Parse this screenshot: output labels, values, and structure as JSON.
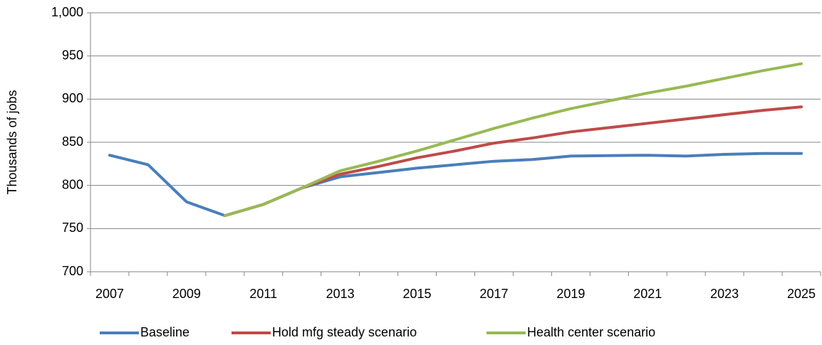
{
  "chart_data": {
    "type": "line",
    "y_label": "Thousands of jobs",
    "categories": [
      "2007",
      null,
      "2009",
      null,
      "2011",
      null,
      "2013",
      null,
      "2015",
      null,
      "2017",
      null,
      "2019",
      null,
      "2021",
      null,
      "2023",
      null,
      "2025"
    ],
    "series": [
      {
        "name": "Baseline",
        "color": "#4a7ebb",
        "values": [
          835,
          824,
          781,
          765,
          778,
          797,
          810,
          815,
          820,
          824,
          828,
          830,
          834,
          834.5,
          835,
          834,
          836,
          837,
          837
        ]
      },
      {
        "name": "Hold mfg steady scenario",
        "color": "#be4b48",
        "values": [
          null,
          null,
          null,
          765,
          778,
          797,
          813,
          822,
          832,
          840,
          849,
          855,
          862,
          867,
          872,
          877,
          882,
          887,
          891
        ]
      },
      {
        "name": "Health center scenario",
        "color": "#98b954",
        "values": [
          null,
          null,
          null,
          765,
          778,
          797,
          817,
          828,
          840,
          853,
          866,
          878,
          889,
          898,
          907,
          915,
          924,
          933,
          941
        ]
      }
    ],
    "ylim": [
      700,
      1000
    ],
    "yticks": [
      700,
      750,
      800,
      850,
      900,
      950,
      {
        "value": 1000,
        "label": "1,000"
      }
    ],
    "grid": true,
    "legend": "bottom"
  }
}
